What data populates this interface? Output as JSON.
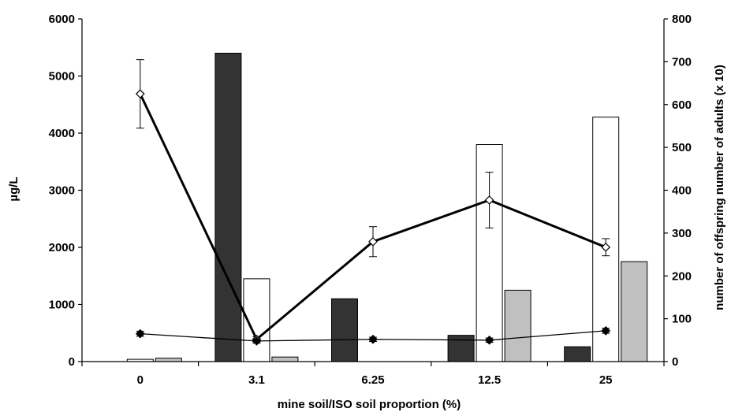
{
  "chart_data": {
    "type": "bar",
    "categories": [
      "0",
      "3.1",
      "6.25",
      "12.5",
      "25"
    ],
    "xlabel": "mine soil/ISO soil proportion (%)",
    "ylabel": "µg/L",
    "y2label": "number of offspring number of adults (x 10)",
    "ylim": [
      0,
      6000
    ],
    "y2lim": [
      0,
      800
    ],
    "yticks": [
      0,
      1000,
      2000,
      3000,
      4000,
      5000,
      6000
    ],
    "y2ticks": [
      0,
      100,
      200,
      300,
      400,
      500,
      600,
      700,
      800
    ],
    "grid": false,
    "bar_series": [
      {
        "color": "#333333",
        "values": [
          0,
          5400,
          1100,
          460,
          260
        ]
      },
      {
        "color": "#ffffff",
        "values": [
          40,
          1450,
          0,
          3800,
          4280
        ]
      },
      {
        "color": "#c0c0c0",
        "values": [
          60,
          80,
          0,
          1250,
          1750
        ]
      }
    ],
    "line_series": [
      {
        "axis": "right",
        "marker": "open-diamond",
        "color": "#000000",
        "values": [
          625,
          52,
          280,
          377,
          267
        ],
        "errors": [
          80,
          6,
          35,
          65,
          20
        ]
      },
      {
        "axis": "right",
        "marker": "filled-diamond",
        "color": "#000000",
        "values": [
          65,
          48,
          52,
          50,
          72
        ],
        "errors": [
          6,
          5,
          5,
          5,
          6
        ]
      }
    ]
  }
}
